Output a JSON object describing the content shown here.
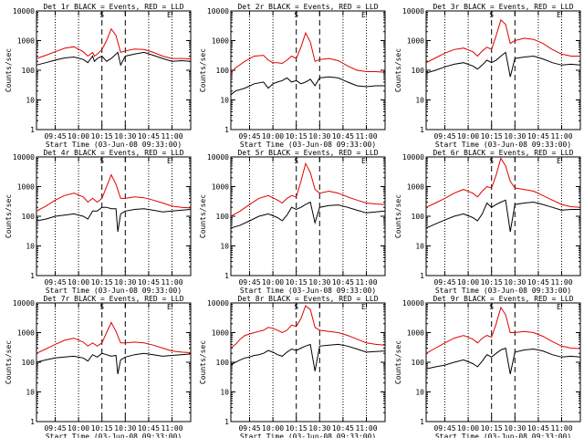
{
  "colors": {
    "events": "#000000",
    "lld": "#e00000",
    "axis": "#000000"
  },
  "shared": {
    "ylabel": "Counts/sec",
    "xlabel": "Start Time (03-Jun-08 09:33:00)",
    "yticks": [
      1,
      10,
      100,
      1000,
      10000
    ],
    "ytick_labels": [
      "1",
      "10",
      "100",
      "1000",
      "10000"
    ],
    "xticks": [
      "09:45",
      "10:00",
      "10:15",
      "10:30",
      "10:45",
      "11:00"
    ],
    "xtick_hours": [
      9.75,
      10.0,
      10.25,
      10.5,
      10.75,
      11.0
    ],
    "x_range_hours": [
      9.55,
      11.2
    ],
    "y_range": [
      1,
      10000
    ],
    "scale": "log",
    "dotted_lines_hours": [
      9.75,
      10.0,
      10.75,
      11.0
    ],
    "dashed_lines_hours": [
      10.25,
      10.5
    ],
    "s_marker": {
      "label": "S",
      "hour": 10.25
    },
    "e_marker": {
      "label": "E",
      "hour": 10.97
    }
  },
  "chart_data": [
    {
      "type": "line",
      "title": "Det 1r BLACK = Events, RED = LLD",
      "series": [
        {
          "name": "Events",
          "x": [
            9.55,
            9.65,
            9.75,
            9.85,
            9.95,
            10.05,
            10.1,
            10.15,
            10.17,
            10.2,
            10.25,
            10.3,
            10.35,
            10.42,
            10.45,
            10.5,
            10.6,
            10.7,
            10.8,
            10.9,
            11.0,
            11.1,
            11.2
          ],
          "y": [
            150,
            180,
            220,
            260,
            280,
            230,
            180,
            300,
            200,
            250,
            300,
            200,
            250,
            400,
            150,
            300,
            350,
            400,
            320,
            250,
            200,
            210,
            200
          ]
        },
        {
          "name": "LLD",
          "x": [
            9.55,
            9.65,
            9.75,
            9.85,
            9.95,
            10.05,
            10.1,
            10.15,
            10.17,
            10.2,
            10.25,
            10.3,
            10.35,
            10.4,
            10.45,
            10.5,
            10.6,
            10.7,
            10.8,
            10.9,
            11.0,
            11.1,
            11.2
          ],
          "y": [
            250,
            320,
            420,
            550,
            620,
            420,
            300,
            400,
            300,
            350,
            500,
            1000,
            2500,
            1500,
            400,
            450,
            520,
            500,
            400,
            300,
            250,
            250,
            240
          ]
        }
      ]
    },
    {
      "type": "line",
      "title": "Det 2r BLACK = Events, RED = LLD",
      "series": [
        {
          "name": "Events",
          "x": [
            9.55,
            9.6,
            9.7,
            9.8,
            9.9,
            9.95,
            10.0,
            10.05,
            10.1,
            10.15,
            10.2,
            10.25,
            10.3,
            10.35,
            10.4,
            10.45,
            10.5,
            10.6,
            10.7,
            10.8,
            10.9,
            11.0,
            11.1,
            11.2
          ],
          "y": [
            15,
            20,
            25,
            35,
            40,
            25,
            35,
            40,
            45,
            55,
            40,
            45,
            35,
            40,
            50,
            30,
            55,
            60,
            55,
            40,
            30,
            28,
            30,
            30
          ]
        },
        {
          "name": "LLD",
          "x": [
            9.55,
            9.6,
            9.7,
            9.8,
            9.9,
            9.95,
            10.0,
            10.05,
            10.1,
            10.15,
            10.2,
            10.25,
            10.3,
            10.35,
            10.4,
            10.45,
            10.5,
            10.6,
            10.7,
            10.8,
            10.9,
            11.0,
            11.1,
            11.2
          ],
          "y": [
            80,
            120,
            200,
            300,
            320,
            220,
            180,
            180,
            170,
            220,
            300,
            250,
            600,
            1800,
            900,
            200,
            230,
            250,
            210,
            140,
            100,
            90,
            90,
            85
          ]
        }
      ]
    },
    {
      "type": "line",
      "title": "Det 3r BLACK = Events, RED = LLD",
      "series": [
        {
          "name": "Events",
          "x": [
            9.55,
            9.65,
            9.75,
            9.85,
            9.95,
            10.05,
            10.1,
            10.15,
            10.2,
            10.25,
            10.3,
            10.35,
            10.4,
            10.45,
            10.5,
            10.6,
            10.7,
            10.8,
            10.9,
            11.0,
            11.1,
            11.2
          ],
          "y": [
            80,
            100,
            130,
            160,
            180,
            140,
            110,
            150,
            220,
            180,
            220,
            300,
            400,
            60,
            250,
            280,
            300,
            240,
            180,
            150,
            160,
            150
          ]
        },
        {
          "name": "LLD",
          "x": [
            9.55,
            9.65,
            9.75,
            9.85,
            9.95,
            10.05,
            10.1,
            10.15,
            10.2,
            10.25,
            10.3,
            10.35,
            10.4,
            10.45,
            10.5,
            10.6,
            10.7,
            10.8,
            10.9,
            11.0,
            11.1,
            11.2
          ],
          "y": [
            180,
            260,
            380,
            500,
            560,
            420,
            300,
            450,
            600,
            500,
            1500,
            5000,
            3500,
            800,
            1000,
            1200,
            1100,
            800,
            500,
            350,
            300,
            300
          ]
        }
      ]
    },
    {
      "type": "line",
      "title": "Det 4r BLACK = Events, RED = LLD",
      "series": [
        {
          "name": "Events",
          "x": [
            9.55,
            9.65,
            9.75,
            9.85,
            9.95,
            10.05,
            10.1,
            10.15,
            10.2,
            10.25,
            10.3,
            10.35,
            10.4,
            10.42,
            10.45,
            10.5,
            10.6,
            10.7,
            10.8,
            10.9,
            11.0,
            11.1,
            11.2
          ],
          "y": [
            70,
            80,
            100,
            110,
            120,
            100,
            80,
            150,
            150,
            200,
            200,
            180,
            180,
            30,
            120,
            150,
            170,
            180,
            160,
            140,
            150,
            160,
            170
          ]
        },
        {
          "name": "LLD",
          "x": [
            9.55,
            9.65,
            9.75,
            9.85,
            9.95,
            10.05,
            10.1,
            10.15,
            10.2,
            10.25,
            10.3,
            10.35,
            10.4,
            10.45,
            10.5,
            10.6,
            10.7,
            10.8,
            10.9,
            11.0,
            11.1,
            11.2
          ],
          "y": [
            150,
            220,
            350,
            500,
            600,
            450,
            300,
            400,
            300,
            400,
            1000,
            2500,
            1200,
            400,
            400,
            450,
            420,
            350,
            280,
            220,
            200,
            190
          ]
        }
      ]
    },
    {
      "type": "line",
      "title": "Det 5r BLACK = Events, RED = LLD",
      "series": [
        {
          "name": "Events",
          "x": [
            9.55,
            9.65,
            9.75,
            9.85,
            9.95,
            10.05,
            10.1,
            10.15,
            10.2,
            10.25,
            10.3,
            10.35,
            10.4,
            10.45,
            10.5,
            10.6,
            10.7,
            10.8,
            10.9,
            11.0,
            11.1,
            11.2
          ],
          "y": [
            40,
            50,
            70,
            100,
            120,
            90,
            70,
            110,
            200,
            170,
            200,
            250,
            300,
            60,
            200,
            230,
            240,
            200,
            160,
            130,
            140,
            150
          ]
        },
        {
          "name": "LLD",
          "x": [
            9.55,
            9.65,
            9.75,
            9.85,
            9.95,
            10.05,
            10.1,
            10.15,
            10.2,
            10.25,
            10.3,
            10.35,
            10.4,
            10.45,
            10.5,
            10.6,
            10.7,
            10.8,
            10.9,
            11.0,
            11.1,
            11.2
          ],
          "y": [
            100,
            150,
            250,
            400,
            500,
            350,
            280,
            400,
            500,
            450,
            1500,
            6000,
            3000,
            800,
            600,
            700,
            600,
            450,
            350,
            280,
            260,
            250
          ]
        }
      ]
    },
    {
      "type": "line",
      "title": "Det 6r BLACK = Events, RED = LLD",
      "series": [
        {
          "name": "Events",
          "x": [
            9.55,
            9.65,
            9.75,
            9.85,
            9.95,
            10.05,
            10.1,
            10.15,
            10.2,
            10.25,
            10.3,
            10.35,
            10.4,
            10.45,
            10.5,
            10.6,
            10.7,
            10.8,
            10.9,
            11.0,
            11.1,
            11.2
          ],
          "y": [
            40,
            55,
            75,
            100,
            120,
            90,
            70,
            120,
            280,
            200,
            250,
            300,
            350,
            30,
            250,
            280,
            300,
            250,
            200,
            160,
            170,
            170
          ]
        },
        {
          "name": "LLD",
          "x": [
            9.55,
            9.65,
            9.75,
            9.85,
            9.95,
            10.05,
            10.1,
            10.15,
            10.2,
            10.25,
            10.3,
            10.35,
            10.4,
            10.45,
            10.5,
            10.6,
            10.7,
            10.8,
            10.9,
            11.0,
            11.1,
            11.2
          ],
          "y": [
            200,
            280,
            400,
            600,
            800,
            600,
            450,
            700,
            1000,
            900,
            2500,
            9000,
            5000,
            1500,
            900,
            800,
            700,
            500,
            350,
            250,
            210,
            200
          ]
        }
      ]
    },
    {
      "type": "line",
      "title": "Det 7r BLACK = Events, RED = LLD",
      "series": [
        {
          "name": "Events",
          "x": [
            9.55,
            9.65,
            9.75,
            9.85,
            9.95,
            10.05,
            10.1,
            10.15,
            10.2,
            10.25,
            10.3,
            10.35,
            10.4,
            10.42,
            10.45,
            10.5,
            10.6,
            10.7,
            10.8,
            10.9,
            11.0,
            11.1,
            11.2
          ],
          "y": [
            100,
            120,
            140,
            150,
            160,
            140,
            110,
            180,
            150,
            200,
            180,
            160,
            170,
            40,
            120,
            150,
            180,
            200,
            180,
            160,
            170,
            180,
            190
          ]
        },
        {
          "name": "LLD",
          "x": [
            9.55,
            9.65,
            9.75,
            9.85,
            9.95,
            10.05,
            10.1,
            10.15,
            10.2,
            10.25,
            10.3,
            10.35,
            10.4,
            10.45,
            10.5,
            10.6,
            10.7,
            10.8,
            10.9,
            11.0,
            11.1,
            11.2
          ],
          "y": [
            200,
            280,
            400,
            550,
            650,
            480,
            350,
            450,
            350,
            450,
            1000,
            2200,
            1100,
            450,
            450,
            480,
            450,
            380,
            300,
            240,
            220,
            210
          ]
        }
      ]
    },
    {
      "type": "line",
      "title": "Det 8r BLACK = Events, RED = LLD",
      "series": [
        {
          "name": "Events",
          "x": [
            9.55,
            9.6,
            9.65,
            9.7,
            9.75,
            9.8,
            9.85,
            9.9,
            9.95,
            10.0,
            10.05,
            10.1,
            10.15,
            10.2,
            10.25,
            10.3,
            10.35,
            10.4,
            10.45,
            10.5,
            10.6,
            10.7,
            10.8,
            10.9,
            11.0,
            11.1,
            11.2
          ],
          "y": [
            80,
            100,
            120,
            140,
            150,
            170,
            180,
            200,
            250,
            220,
            180,
            160,
            220,
            280,
            250,
            300,
            350,
            400,
            50,
            350,
            380,
            400,
            350,
            280,
            220,
            230,
            240
          ]
        },
        {
          "name": "LLD",
          "x": [
            9.55,
            9.6,
            9.65,
            9.7,
            9.75,
            9.8,
            9.85,
            9.9,
            9.95,
            10.0,
            10.05,
            10.1,
            10.15,
            10.2,
            10.25,
            10.3,
            10.35,
            10.4,
            10.45,
            10.5,
            10.6,
            10.7,
            10.8,
            10.9,
            11.0,
            11.1,
            11.2
          ],
          "y": [
            300,
            400,
            600,
            800,
            900,
            1000,
            1100,
            1200,
            1500,
            1400,
            1200,
            1000,
            1200,
            1800,
            1600,
            3000,
            8000,
            6000,
            1500,
            1200,
            1100,
            1000,
            800,
            600,
            450,
            400,
            380
          ]
        }
      ]
    },
    {
      "type": "line",
      "title": "Det 9r BLACK = Events, RED = LLD",
      "series": [
        {
          "name": "Events",
          "x": [
            9.55,
            9.65,
            9.75,
            9.85,
            9.95,
            10.05,
            10.1,
            10.15,
            10.2,
            10.25,
            10.3,
            10.35,
            10.4,
            10.45,
            10.5,
            10.6,
            10.7,
            10.8,
            10.9,
            11.0,
            11.1,
            11.2
          ],
          "y": [
            60,
            70,
            80,
            100,
            120,
            90,
            70,
            110,
            180,
            150,
            200,
            260,
            300,
            40,
            220,
            260,
            280,
            240,
            180,
            150,
            160,
            150
          ]
        },
        {
          "name": "LLD",
          "x": [
            9.55,
            9.65,
            9.75,
            9.85,
            9.95,
            10.05,
            10.1,
            10.15,
            10.2,
            10.25,
            10.3,
            10.35,
            10.4,
            10.45,
            10.5,
            10.6,
            10.7,
            10.8,
            10.9,
            11.0,
            11.1,
            11.2
          ],
          "y": [
            200,
            300,
            450,
            650,
            800,
            600,
            450,
            650,
            800,
            700,
            2000,
            7000,
            4000,
            1000,
            1000,
            1100,
            1000,
            750,
            500,
            350,
            300,
            290
          ]
        }
      ]
    }
  ]
}
